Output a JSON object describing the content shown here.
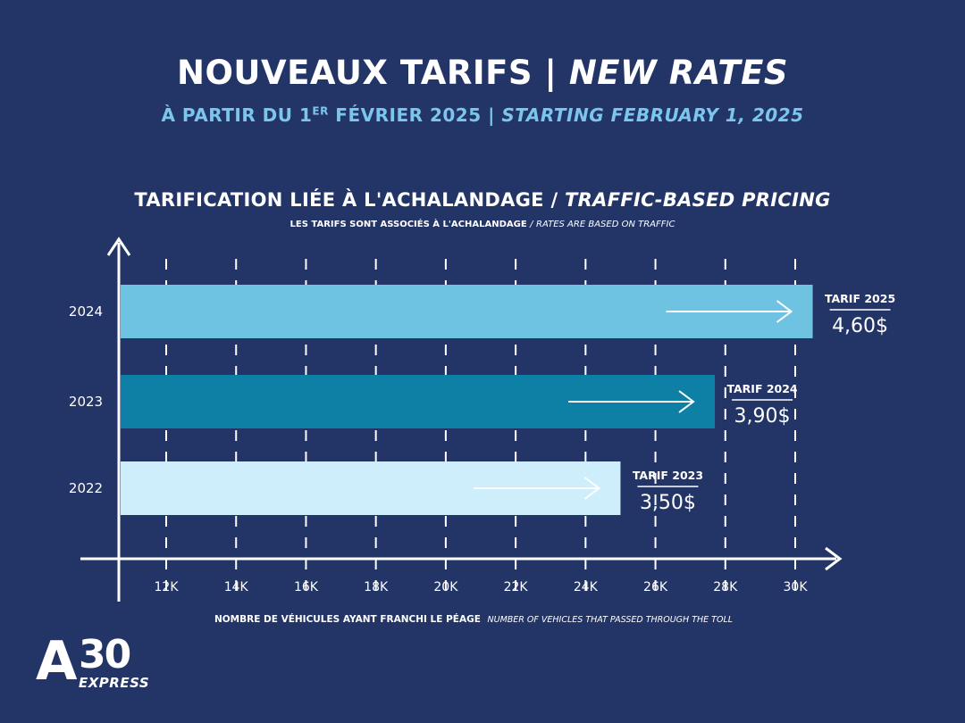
{
  "header": {
    "title_fr": "NOUVEAUX TARIFS",
    "title_sep": "|",
    "title_en": "NEW RATES",
    "subtitle_fr_pre": "À PARTIR DU 1",
    "subtitle_fr_sup": "ER",
    "subtitle_fr_post": " FÉVRIER 2025",
    "subtitle_sep": "|",
    "subtitle_en": "STARTING FEBRUARY 1, 2025"
  },
  "chart_header": {
    "title_fr": "TARIFICATION LIÉE À L'ACHALANDAGE",
    "title_sep": "/",
    "title_en": "TRAFFIC-BASED PRICING",
    "sub_fr": "LES TARIFS SONT ASSOCIÉS À L'ACHALANDAGE",
    "sub_sep": "/",
    "sub_en": "RATES ARE BASED ON TRAFFIC"
  },
  "xlabel": {
    "fr": "NOMBRE DE VÉHICULES AYANT FRANCHI LE PÉAGE",
    "en": "NUMBER OF VEHICLES THAT PASSED THROUGH THE TOLL"
  },
  "logo": {
    "mark": "A",
    "number": "30",
    "sub": "EXPRESS"
  },
  "colors": {
    "background": "#233467",
    "bar_2024": "#6ec3e2",
    "bar_2023": "#0e80a6",
    "bar_2022": "#cdeefa",
    "white": "#ffffff"
  },
  "chart_data": {
    "type": "bar",
    "orientation": "horizontal",
    "categories": [
      "2024",
      "2023",
      "2022"
    ],
    "values": [
      30500,
      27700,
      25000
    ],
    "x_ticks": [
      12000,
      14000,
      16000,
      18000,
      20000,
      22000,
      24000,
      26000,
      28000,
      30000
    ],
    "x_tick_labels": [
      "12K",
      "14K",
      "16K",
      "18K",
      "20K",
      "22K",
      "24K",
      "26K",
      "28K",
      "30K"
    ],
    "grid": "vertical-dashed",
    "annotations": [
      {
        "label": "TARIF 2025",
        "value": "4,60$"
      },
      {
        "label": "TARIF 2024",
        "value": "3,90$"
      },
      {
        "label": "TARIF 2023",
        "value": "3,50$"
      }
    ]
  }
}
